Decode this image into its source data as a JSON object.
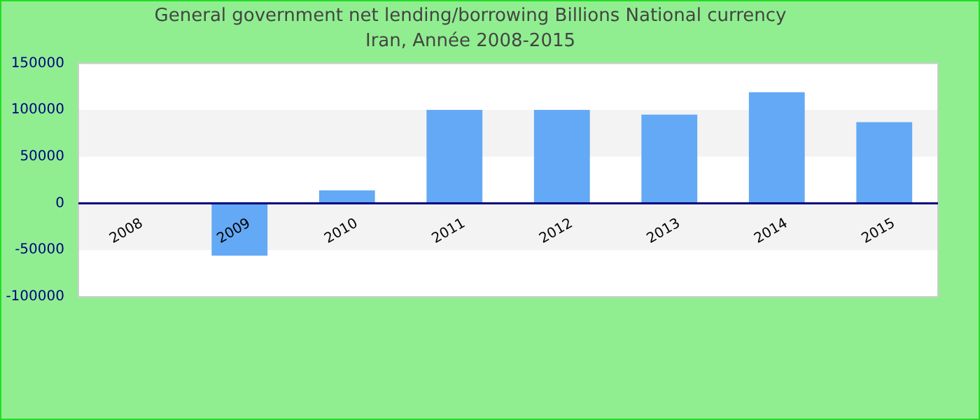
{
  "chart_data": {
    "type": "bar",
    "title": "General government net lending/borrowing Billions National currency",
    "subtitle": "Iran, Année 2008-2015",
    "categories": [
      "2008",
      "2009",
      "2010",
      "2011",
      "2012",
      "2013",
      "2014",
      "2015"
    ],
    "values": [
      null,
      -56000,
      14000,
      100000,
      100000,
      95000,
      119000,
      87000
    ],
    "color": "#63a9f5",
    "ylim": [
      -100000,
      150000
    ],
    "yticks": [
      -100000,
      -50000,
      0,
      50000,
      100000,
      150000
    ]
  }
}
